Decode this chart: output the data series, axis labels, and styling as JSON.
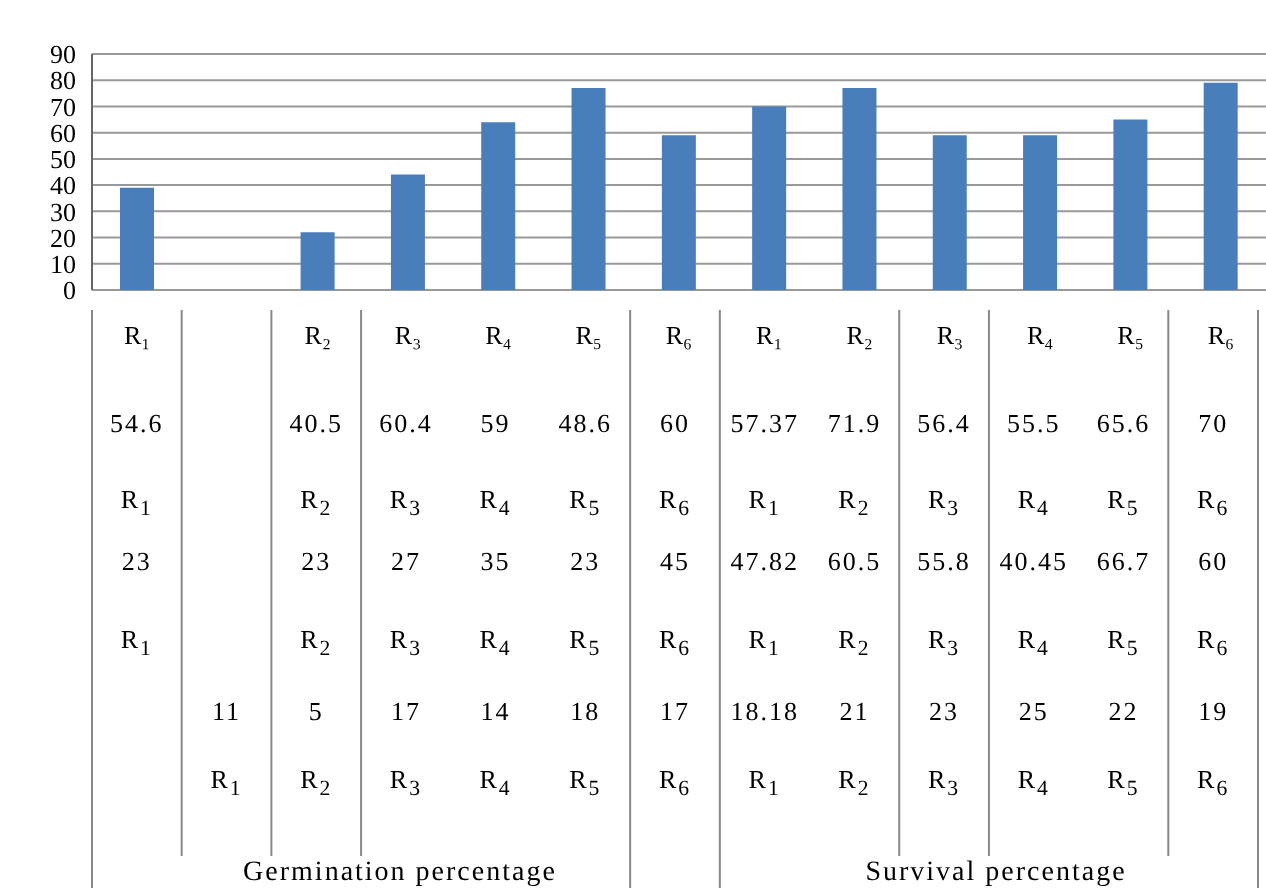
{
  "chart_data": {
    "type": "bar",
    "categories": [
      "R₁",
      null,
      "R₂",
      "R₃",
      "R₄",
      "R₅",
      "R₆",
      "R₁",
      "R₂",
      "R₃",
      "R₄",
      "R₅",
      "R₆"
    ],
    "values": [
      39,
      null,
      22,
      44,
      64,
      77,
      59,
      70,
      77,
      59,
      59,
      65,
      79
    ],
    "color": "#4a7ebb",
    "ylim": [
      0,
      90
    ],
    "yticks": [
      0,
      10,
      20,
      30,
      40,
      50,
      60,
      70,
      80,
      90
    ],
    "grid": "y",
    "annotations": [
      "54.6",
      "40.5",
      "60.4",
      "59",
      "48.6",
      "60",
      "57.37",
      "71.9",
      "56.4",
      "55.5",
      "65.6",
      "70",
      "R$_{1}$",
      "R$_{2}$",
      "R$_{3}$",
      "R$_{4}$",
      "R$_{5}$",
      "R$_{6}$",
      "R$_{1}$",
      "R$_{2}$",
      "R$_{3}$",
      "R$_{4}$",
      "R$_{5}$",
      "R$_{6}$",
      "23",
      "23",
      "27",
      "35",
      "23",
      "45",
      "47.82",
      "60.5",
      "55.8",
      "40.45",
      "66.7",
      "60",
      "R$_{1}$",
      "R$_{2}$",
      "R$_{3}$",
      "R$_{4}$",
      "R$_{5}$",
      "R$_{6}$",
      "R$_{1}$",
      "R$_{2}$",
      "R$_{3}$",
      "R$_{4}$",
      "R$_{5}$",
      "R$_{6}$",
      "11",
      "5",
      "17",
      "14",
      "18",
      "17",
      "18.18",
      "21",
      "23",
      "25",
      "22",
      "19",
      "R$_{1}$",
      "R$_{2}$",
      "R$_{3}$",
      "R$_{4}$",
      "R$_{5}$",
      "R$_{6}$",
      "R$_{1}$",
      "R$_{2}$",
      "R$_{3}$",
      "R$_{4}$",
      "R$_{5}$",
      "R$_{6}$",
      "Germination percentage",
      "Survival percentage"
    ]
  }
}
